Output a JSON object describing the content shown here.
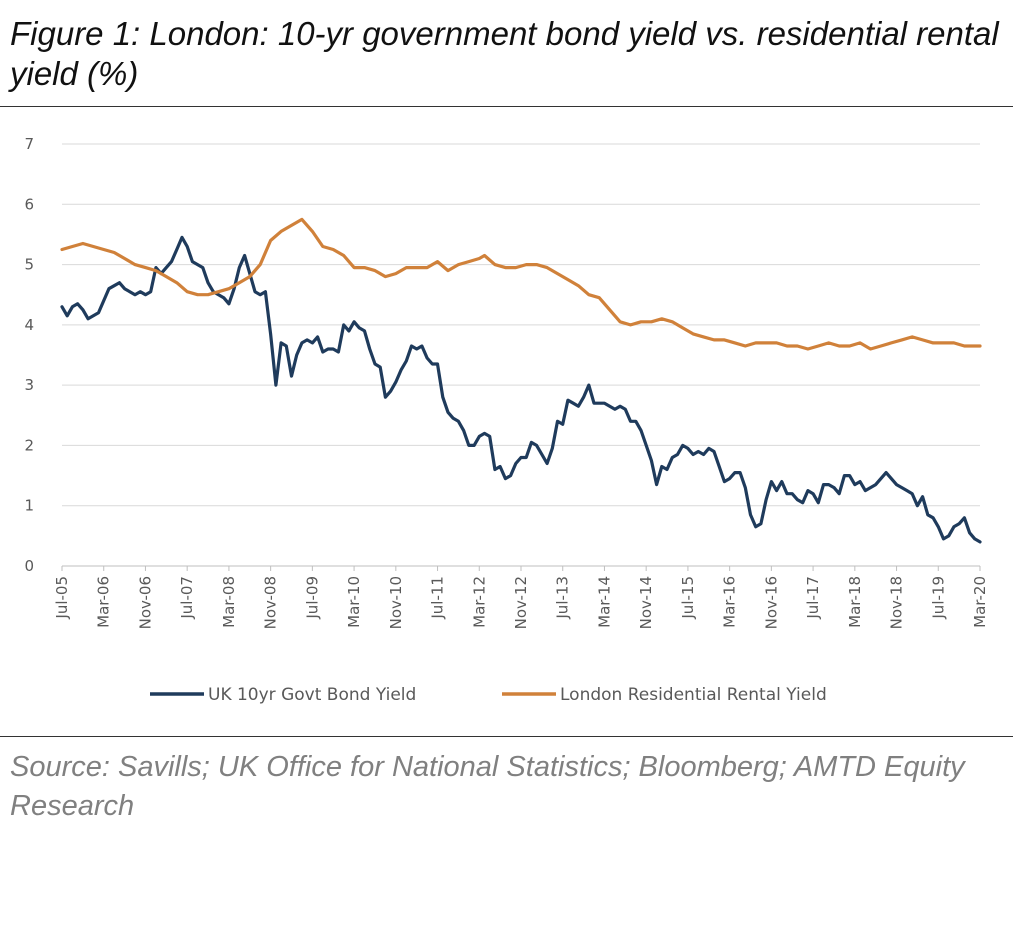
{
  "figure": {
    "title": "Figure 1: London: 10-yr government bond yield vs. residential rental yield (%)",
    "source": "Source: Savills; UK Office for National Statistics; Bloomberg; AMTD Equity Research"
  },
  "chart_data": {
    "type": "line",
    "title": "",
    "xlabel": "",
    "ylabel": "",
    "ylim": [
      0,
      7
    ],
    "yticks": [
      "0",
      "1",
      "2",
      "3",
      "4",
      "5",
      "6",
      "7"
    ],
    "grid": "horizontal",
    "legend_position": "bottom",
    "x_start": "Jul-05",
    "x_end": "Mar-20",
    "xtick_labels": [
      "Jul-05",
      "Mar-06",
      "Nov-06",
      "Jul-07",
      "Mar-08",
      "Nov-08",
      "Jul-09",
      "Mar-10",
      "Nov-10",
      "Jul-11",
      "Mar-12",
      "Nov-12",
      "Jul-13",
      "Mar-14",
      "Nov-14",
      "Jul-15",
      "Mar-16",
      "Nov-16",
      "Jul-17",
      "Mar-18",
      "Nov-18",
      "Jul-19",
      "Mar-20"
    ],
    "series": [
      {
        "name": "UK 10yr Govt Bond Yield",
        "color": "#1f3b5c",
        "points": [
          [
            "Jul-05",
            4.3
          ],
          [
            "Aug-05",
            4.15
          ],
          [
            "Sep-05",
            4.3
          ],
          [
            "Oct-05",
            4.35
          ],
          [
            "Nov-05",
            4.25
          ],
          [
            "Dec-05",
            4.1
          ],
          [
            "Jan-06",
            4.15
          ],
          [
            "Feb-06",
            4.2
          ],
          [
            "Mar-06",
            4.4
          ],
          [
            "Apr-06",
            4.6
          ],
          [
            "May-06",
            4.65
          ],
          [
            "Jun-06",
            4.7
          ],
          [
            "Jul-06",
            4.6
          ],
          [
            "Aug-06",
            4.55
          ],
          [
            "Sep-06",
            4.5
          ],
          [
            "Oct-06",
            4.55
          ],
          [
            "Nov-06",
            4.5
          ],
          [
            "Dec-06",
            4.55
          ],
          [
            "Jan-07",
            4.95
          ],
          [
            "Feb-07",
            4.85
          ],
          [
            "Mar-07",
            4.95
          ],
          [
            "Apr-07",
            5.05
          ],
          [
            "May-07",
            5.25
          ],
          [
            "Jun-07",
            5.45
          ],
          [
            "Jul-07",
            5.3
          ],
          [
            "Aug-07",
            5.05
          ],
          [
            "Sep-07",
            5.0
          ],
          [
            "Oct-07",
            4.95
          ],
          [
            "Nov-07",
            4.7
          ],
          [
            "Dec-07",
            4.55
          ],
          [
            "Jan-08",
            4.5
          ],
          [
            "Feb-08",
            4.45
          ],
          [
            "Mar-08",
            4.35
          ],
          [
            "Apr-08",
            4.6
          ],
          [
            "May-08",
            4.95
          ],
          [
            "Jun-08",
            5.15
          ],
          [
            "Jul-08",
            4.85
          ],
          [
            "Aug-08",
            4.55
          ],
          [
            "Sep-08",
            4.5
          ],
          [
            "Oct-08",
            4.55
          ],
          [
            "Nov-08",
            3.85
          ],
          [
            "Dec-08",
            3.0
          ],
          [
            "Jan-09",
            3.7
          ],
          [
            "Feb-09",
            3.65
          ],
          [
            "Mar-09",
            3.15
          ],
          [
            "Apr-09",
            3.5
          ],
          [
            "May-09",
            3.7
          ],
          [
            "Jun-09",
            3.75
          ],
          [
            "Jul-09",
            3.7
          ],
          [
            "Aug-09",
            3.8
          ],
          [
            "Sep-09",
            3.55
          ],
          [
            "Oct-09",
            3.6
          ],
          [
            "Nov-09",
            3.6
          ],
          [
            "Dec-09",
            3.55
          ],
          [
            "Jan-10",
            4.0
          ],
          [
            "Feb-10",
            3.9
          ],
          [
            "Mar-10",
            4.05
          ],
          [
            "Apr-10",
            3.95
          ],
          [
            "May-10",
            3.9
          ],
          [
            "Jun-10",
            3.6
          ],
          [
            "Jul-10",
            3.35
          ],
          [
            "Aug-10",
            3.3
          ],
          [
            "Sep-10",
            2.8
          ],
          [
            "Oct-10",
            2.9
          ],
          [
            "Nov-10",
            3.05
          ],
          [
            "Dec-10",
            3.25
          ],
          [
            "Jan-11",
            3.4
          ],
          [
            "Feb-11",
            3.65
          ],
          [
            "Mar-11",
            3.6
          ],
          [
            "Apr-11",
            3.65
          ],
          [
            "May-11",
            3.45
          ],
          [
            "Jun-11",
            3.35
          ],
          [
            "Jul-11",
            3.35
          ],
          [
            "Aug-11",
            2.8
          ],
          [
            "Sep-11",
            2.55
          ],
          [
            "Oct-11",
            2.45
          ],
          [
            "Nov-11",
            2.4
          ],
          [
            "Dec-11",
            2.25
          ],
          [
            "Jan-12",
            2.0
          ],
          [
            "Feb-12",
            2.0
          ],
          [
            "Mar-12",
            2.15
          ],
          [
            "Apr-12",
            2.2
          ],
          [
            "May-12",
            2.15
          ],
          [
            "Jun-12",
            1.6
          ],
          [
            "Jul-12",
            1.65
          ],
          [
            "Aug-12",
            1.45
          ],
          [
            "Sep-12",
            1.5
          ],
          [
            "Oct-12",
            1.7
          ],
          [
            "Nov-12",
            1.8
          ],
          [
            "Dec-12",
            1.8
          ],
          [
            "Jan-13",
            2.05
          ],
          [
            "Feb-13",
            2.0
          ],
          [
            "Mar-13",
            1.85
          ],
          [
            "Apr-13",
            1.7
          ],
          [
            "May-13",
            1.95
          ],
          [
            "Jun-13",
            2.4
          ],
          [
            "Jul-13",
            2.35
          ],
          [
            "Aug-13",
            2.75
          ],
          [
            "Sep-13",
            2.7
          ],
          [
            "Oct-13",
            2.65
          ],
          [
            "Nov-13",
            2.8
          ],
          [
            "Dec-13",
            3.0
          ],
          [
            "Jan-14",
            2.7
          ],
          [
            "Feb-14",
            2.7
          ],
          [
            "Mar-14",
            2.7
          ],
          [
            "Apr-14",
            2.65
          ],
          [
            "May-14",
            2.6
          ],
          [
            "Jun-14",
            2.65
          ],
          [
            "Jul-14",
            2.6
          ],
          [
            "Aug-14",
            2.4
          ],
          [
            "Sep-14",
            2.4
          ],
          [
            "Oct-14",
            2.25
          ],
          [
            "Nov-14",
            2.0
          ],
          [
            "Dec-14",
            1.75
          ],
          [
            "Jan-15",
            1.35
          ],
          [
            "Feb-15",
            1.65
          ],
          [
            "Mar-15",
            1.6
          ],
          [
            "Apr-15",
            1.8
          ],
          [
            "May-15",
            1.85
          ],
          [
            "Jun-15",
            2.0
          ],
          [
            "Jul-15",
            1.95
          ],
          [
            "Aug-15",
            1.85
          ],
          [
            "Sep-15",
            1.9
          ],
          [
            "Oct-15",
            1.85
          ],
          [
            "Nov-15",
            1.95
          ],
          [
            "Dec-15",
            1.9
          ],
          [
            "Jan-16",
            1.65
          ],
          [
            "Feb-16",
            1.4
          ],
          [
            "Mar-16",
            1.45
          ],
          [
            "Apr-16",
            1.55
          ],
          [
            "May-16",
            1.55
          ],
          [
            "Jun-16",
            1.3
          ],
          [
            "Jul-16",
            0.85
          ],
          [
            "Aug-16",
            0.65
          ],
          [
            "Sep-16",
            0.7
          ],
          [
            "Oct-16",
            1.1
          ],
          [
            "Nov-16",
            1.4
          ],
          [
            "Dec-16",
            1.25
          ],
          [
            "Jan-17",
            1.4
          ],
          [
            "Feb-17",
            1.2
          ],
          [
            "Mar-17",
            1.2
          ],
          [
            "Apr-17",
            1.1
          ],
          [
            "May-17",
            1.05
          ],
          [
            "Jun-17",
            1.25
          ],
          [
            "Jul-17",
            1.2
          ],
          [
            "Aug-17",
            1.05
          ],
          [
            "Sep-17",
            1.35
          ],
          [
            "Oct-17",
            1.35
          ],
          [
            "Nov-17",
            1.3
          ],
          [
            "Dec-17",
            1.2
          ],
          [
            "Jan-18",
            1.5
          ],
          [
            "Feb-18",
            1.5
          ],
          [
            "Mar-18",
            1.35
          ],
          [
            "Apr-18",
            1.4
          ],
          [
            "May-18",
            1.25
          ],
          [
            "Jun-18",
            1.3
          ],
          [
            "Jul-18",
            1.35
          ],
          [
            "Aug-18",
            1.45
          ],
          [
            "Sep-18",
            1.55
          ],
          [
            "Oct-18",
            1.45
          ],
          [
            "Nov-18",
            1.35
          ],
          [
            "Dec-18",
            1.3
          ],
          [
            "Jan-19",
            1.25
          ],
          [
            "Feb-19",
            1.2
          ],
          [
            "Mar-19",
            1.0
          ],
          [
            "Apr-19",
            1.15
          ],
          [
            "May-19",
            0.85
          ],
          [
            "Jun-19",
            0.8
          ],
          [
            "Jul-19",
            0.65
          ],
          [
            "Aug-19",
            0.45
          ],
          [
            "Sep-19",
            0.5
          ],
          [
            "Oct-19",
            0.65
          ],
          [
            "Nov-19",
            0.7
          ],
          [
            "Dec-19",
            0.8
          ],
          [
            "Jan-20",
            0.55
          ],
          [
            "Feb-20",
            0.45
          ],
          [
            "Mar-20",
            0.4
          ]
        ]
      },
      {
        "name": "London Residential Rental Yield",
        "color": "#d0813a",
        "points": [
          [
            "Jul-05",
            5.25
          ],
          [
            "Sep-05",
            5.3
          ],
          [
            "Nov-05",
            5.35
          ],
          [
            "Jan-06",
            5.3
          ],
          [
            "Mar-06",
            5.25
          ],
          [
            "May-06",
            5.2
          ],
          [
            "Jul-06",
            5.1
          ],
          [
            "Sep-06",
            5.0
          ],
          [
            "Nov-06",
            4.95
          ],
          [
            "Jan-07",
            4.9
          ],
          [
            "Mar-07",
            4.8
          ],
          [
            "May-07",
            4.7
          ],
          [
            "Jul-07",
            4.55
          ],
          [
            "Sep-07",
            4.5
          ],
          [
            "Nov-07",
            4.5
          ],
          [
            "Jan-08",
            4.55
          ],
          [
            "Mar-08",
            4.6
          ],
          [
            "May-08",
            4.7
          ],
          [
            "Jul-08",
            4.8
          ],
          [
            "Sep-08",
            5.0
          ],
          [
            "Nov-08",
            5.4
          ],
          [
            "Jan-09",
            5.55
          ],
          [
            "Mar-09",
            5.65
          ],
          [
            "May-09",
            5.75
          ],
          [
            "Jul-09",
            5.55
          ],
          [
            "Sep-09",
            5.3
          ],
          [
            "Nov-09",
            5.25
          ],
          [
            "Jan-10",
            5.15
          ],
          [
            "Mar-10",
            4.95
          ],
          [
            "May-10",
            4.95
          ],
          [
            "Jul-10",
            4.9
          ],
          [
            "Sep-10",
            4.8
          ],
          [
            "Nov-10",
            4.85
          ],
          [
            "Jan-11",
            4.95
          ],
          [
            "Mar-11",
            4.95
          ],
          [
            "May-11",
            4.95
          ],
          [
            "Jul-11",
            5.05
          ],
          [
            "Sep-11",
            4.9
          ],
          [
            "Nov-11",
            5.0
          ],
          [
            "Jan-12",
            5.05
          ],
          [
            "Mar-12",
            5.1
          ],
          [
            "Apr-12",
            5.15
          ],
          [
            "Jun-12",
            5.0
          ],
          [
            "Aug-12",
            4.95
          ],
          [
            "Oct-12",
            4.95
          ],
          [
            "Dec-12",
            5.0
          ],
          [
            "Feb-13",
            5.0
          ],
          [
            "Apr-13",
            4.95
          ],
          [
            "Jun-13",
            4.85
          ],
          [
            "Aug-13",
            4.75
          ],
          [
            "Oct-13",
            4.65
          ],
          [
            "Dec-13",
            4.5
          ],
          [
            "Feb-14",
            4.45
          ],
          [
            "Apr-14",
            4.25
          ],
          [
            "Jun-14",
            4.05
          ],
          [
            "Aug-14",
            4.0
          ],
          [
            "Oct-14",
            4.05
          ],
          [
            "Dec-14",
            4.05
          ],
          [
            "Feb-15",
            4.1
          ],
          [
            "Apr-15",
            4.05
          ],
          [
            "Jun-15",
            3.95
          ],
          [
            "Aug-15",
            3.85
          ],
          [
            "Oct-15",
            3.8
          ],
          [
            "Dec-15",
            3.75
          ],
          [
            "Feb-16",
            3.75
          ],
          [
            "Apr-16",
            3.7
          ],
          [
            "Jun-16",
            3.65
          ],
          [
            "Aug-16",
            3.7
          ],
          [
            "Oct-16",
            3.7
          ],
          [
            "Dec-16",
            3.7
          ],
          [
            "Feb-17",
            3.65
          ],
          [
            "Apr-17",
            3.65
          ],
          [
            "Jun-17",
            3.6
          ],
          [
            "Aug-17",
            3.65
          ],
          [
            "Oct-17",
            3.7
          ],
          [
            "Dec-17",
            3.65
          ],
          [
            "Feb-18",
            3.65
          ],
          [
            "Apr-18",
            3.7
          ],
          [
            "Jun-18",
            3.6
          ],
          [
            "Aug-18",
            3.65
          ],
          [
            "Oct-18",
            3.7
          ],
          [
            "Dec-18",
            3.75
          ],
          [
            "Feb-19",
            3.8
          ],
          [
            "Apr-19",
            3.75
          ],
          [
            "Jun-19",
            3.7
          ],
          [
            "Aug-19",
            3.7
          ],
          [
            "Oct-19",
            3.7
          ],
          [
            "Dec-19",
            3.65
          ],
          [
            "Feb-20",
            3.65
          ],
          [
            "Mar-20",
            3.65
          ]
        ]
      }
    ]
  }
}
